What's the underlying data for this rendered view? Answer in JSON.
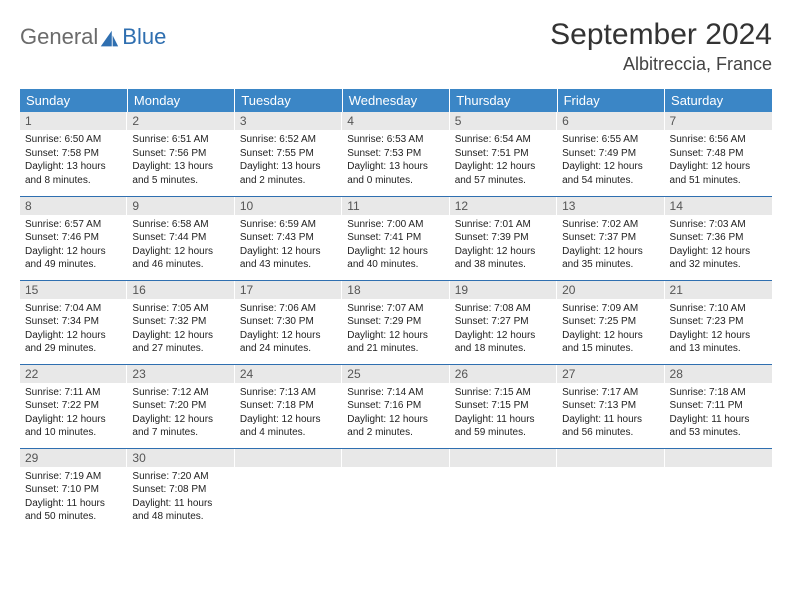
{
  "brand": {
    "part1": "General",
    "part2": "Blue"
  },
  "title": "September 2024",
  "location": "Albitreccia, France",
  "colors": {
    "header_bg": "#3b86c6",
    "accent": "#2f6fb0",
    "daynum_bg": "#e8e8e8"
  },
  "weekdays": [
    "Sunday",
    "Monday",
    "Tuesday",
    "Wednesday",
    "Thursday",
    "Friday",
    "Saturday"
  ],
  "days": [
    {
      "n": "1",
      "sunrise": "6:50 AM",
      "sunset": "7:58 PM",
      "dl": "13 hours and 8 minutes."
    },
    {
      "n": "2",
      "sunrise": "6:51 AM",
      "sunset": "7:56 PM",
      "dl": "13 hours and 5 minutes."
    },
    {
      "n": "3",
      "sunrise": "6:52 AM",
      "sunset": "7:55 PM",
      "dl": "13 hours and 2 minutes."
    },
    {
      "n": "4",
      "sunrise": "6:53 AM",
      "sunset": "7:53 PM",
      "dl": "13 hours and 0 minutes."
    },
    {
      "n": "5",
      "sunrise": "6:54 AM",
      "sunset": "7:51 PM",
      "dl": "12 hours and 57 minutes."
    },
    {
      "n": "6",
      "sunrise": "6:55 AM",
      "sunset": "7:49 PM",
      "dl": "12 hours and 54 minutes."
    },
    {
      "n": "7",
      "sunrise": "6:56 AM",
      "sunset": "7:48 PM",
      "dl": "12 hours and 51 minutes."
    },
    {
      "n": "8",
      "sunrise": "6:57 AM",
      "sunset": "7:46 PM",
      "dl": "12 hours and 49 minutes."
    },
    {
      "n": "9",
      "sunrise": "6:58 AM",
      "sunset": "7:44 PM",
      "dl": "12 hours and 46 minutes."
    },
    {
      "n": "10",
      "sunrise": "6:59 AM",
      "sunset": "7:43 PM",
      "dl": "12 hours and 43 minutes."
    },
    {
      "n": "11",
      "sunrise": "7:00 AM",
      "sunset": "7:41 PM",
      "dl": "12 hours and 40 minutes."
    },
    {
      "n": "12",
      "sunrise": "7:01 AM",
      "sunset": "7:39 PM",
      "dl": "12 hours and 38 minutes."
    },
    {
      "n": "13",
      "sunrise": "7:02 AM",
      "sunset": "7:37 PM",
      "dl": "12 hours and 35 minutes."
    },
    {
      "n": "14",
      "sunrise": "7:03 AM",
      "sunset": "7:36 PM",
      "dl": "12 hours and 32 minutes."
    },
    {
      "n": "15",
      "sunrise": "7:04 AM",
      "sunset": "7:34 PM",
      "dl": "12 hours and 29 minutes."
    },
    {
      "n": "16",
      "sunrise": "7:05 AM",
      "sunset": "7:32 PM",
      "dl": "12 hours and 27 minutes."
    },
    {
      "n": "17",
      "sunrise": "7:06 AM",
      "sunset": "7:30 PM",
      "dl": "12 hours and 24 minutes."
    },
    {
      "n": "18",
      "sunrise": "7:07 AM",
      "sunset": "7:29 PM",
      "dl": "12 hours and 21 minutes."
    },
    {
      "n": "19",
      "sunrise": "7:08 AM",
      "sunset": "7:27 PM",
      "dl": "12 hours and 18 minutes."
    },
    {
      "n": "20",
      "sunrise": "7:09 AM",
      "sunset": "7:25 PM",
      "dl": "12 hours and 15 minutes."
    },
    {
      "n": "21",
      "sunrise": "7:10 AM",
      "sunset": "7:23 PM",
      "dl": "12 hours and 13 minutes."
    },
    {
      "n": "22",
      "sunrise": "7:11 AM",
      "sunset": "7:22 PM",
      "dl": "12 hours and 10 minutes."
    },
    {
      "n": "23",
      "sunrise": "7:12 AM",
      "sunset": "7:20 PM",
      "dl": "12 hours and 7 minutes."
    },
    {
      "n": "24",
      "sunrise": "7:13 AM",
      "sunset": "7:18 PM",
      "dl": "12 hours and 4 minutes."
    },
    {
      "n": "25",
      "sunrise": "7:14 AM",
      "sunset": "7:16 PM",
      "dl": "12 hours and 2 minutes."
    },
    {
      "n": "26",
      "sunrise": "7:15 AM",
      "sunset": "7:15 PM",
      "dl": "11 hours and 59 minutes."
    },
    {
      "n": "27",
      "sunrise": "7:17 AM",
      "sunset": "7:13 PM",
      "dl": "11 hours and 56 minutes."
    },
    {
      "n": "28",
      "sunrise": "7:18 AM",
      "sunset": "7:11 PM",
      "dl": "11 hours and 53 minutes."
    },
    {
      "n": "29",
      "sunrise": "7:19 AM",
      "sunset": "7:10 PM",
      "dl": "11 hours and 50 minutes."
    },
    {
      "n": "30",
      "sunrise": "7:20 AM",
      "sunset": "7:08 PM",
      "dl": "11 hours and 48 minutes."
    }
  ],
  "labels": {
    "sunrise": "Sunrise:",
    "sunset": "Sunset:",
    "daylight": "Daylight:"
  }
}
